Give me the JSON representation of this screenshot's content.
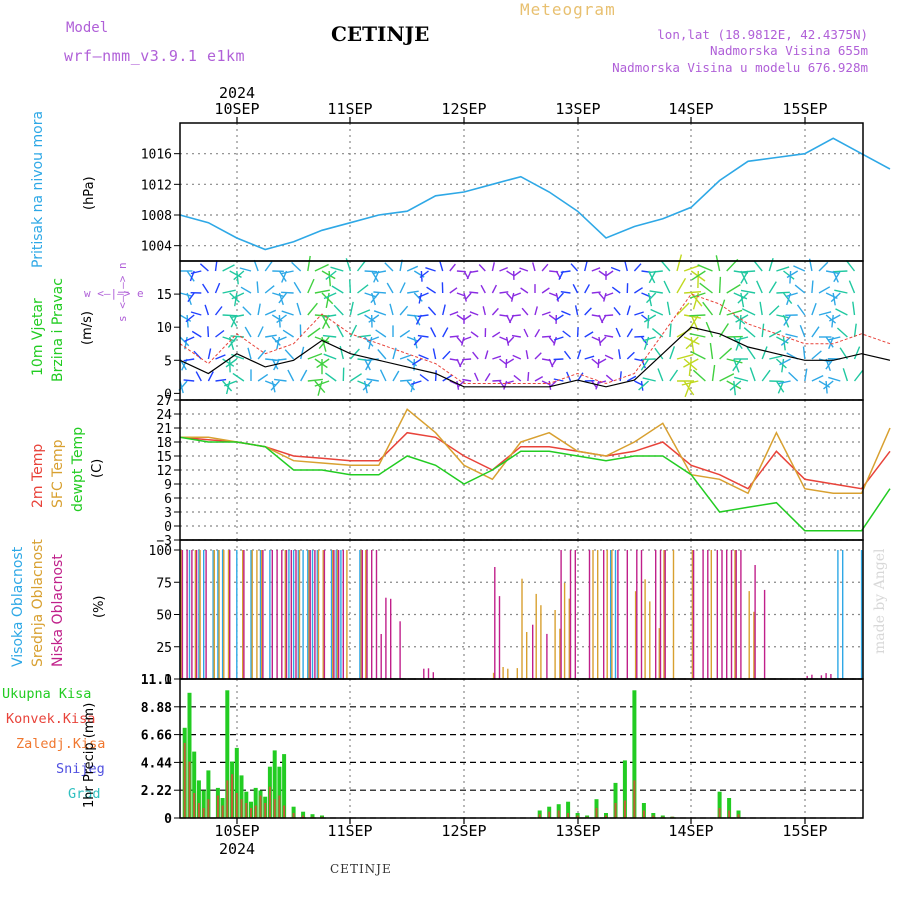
{
  "header": {
    "model_label": "Model",
    "model_name": "wrf—nmm_v3.9.1 e1km",
    "city": "CETINJE",
    "meteogram": "Meteogram",
    "lonlat": "lon,lat (18.9812E, 42.4375N)",
    "elevation": "Nadmorska Visina 655m",
    "model_elevation": "Nadmorska Visina u modelu 676.928m"
  },
  "footer": {
    "city": "CETINJE",
    "watermark": "made by Angel"
  },
  "colors": {
    "pressure": "#2ea8e6",
    "temp2m": "#e8433a",
    "sfc": "#d8a030",
    "dew": "#22cc22",
    "cloud_high": "#2ea8e6",
    "cloud_mid": "#d8a030",
    "cloud_low": "#c0208a",
    "precip": "#22cc22",
    "conv": "#e8433a"
  },
  "time_axis": {
    "year_label": "2024",
    "days": [
      "10SEP",
      "11SEP",
      "12SEP",
      "13SEP",
      "14SEP",
      "15SEP"
    ],
    "hours_total": 150
  },
  "panels": {
    "pressure": {
      "title": "Pritisak na nivou mora",
      "unit": "(hPa)",
      "ticks": [
        "1004",
        "1008",
        "1012",
        "1016"
      ]
    },
    "wind": {
      "title1": "10m Vjetar",
      "title2": "Brzina i Pravac",
      "unit": "(m/s)",
      "ticks": [
        "0",
        "5",
        "10",
        "15"
      ],
      "compass": "w <—|—> e",
      "compass_v": "s <—|—> n"
    },
    "temp": {
      "t1": "2m Temp",
      "t2": "SFC Temp",
      "t3": "dewpt Temp",
      "unit": "(C)",
      "ticks": [
        "−3",
        "0",
        "3",
        "6",
        "9",
        "12",
        "15",
        "18",
        "21",
        "24",
        "27"
      ]
    },
    "cloud": {
      "t1": "Visoka Oblacnost",
      "t2": "Srednja Oblacnost",
      "t3": "Niska Oblacnost",
      "unit": "(%)",
      "ticks": [
        "0",
        "25",
        "50",
        "75",
        "100"
      ]
    },
    "precip": {
      "l1": "Ukupna Kisa",
      "l2": "Konvek.Kisa",
      "l3": "Zaledj.Kisa",
      "l4": "Snijeg",
      "l5": "Grad",
      "unit": "1hr Precip (mm)",
      "ticks": [
        "0",
        "2.22",
        "4.44",
        "6.66",
        "8.88",
        "11.1"
      ]
    }
  },
  "chart_data": [
    {
      "type": "line",
      "title": "Pritisak na nivou mora",
      "ylabel": "(hPa)",
      "ylim": [
        1002,
        1020
      ],
      "x_hours": [
        0,
        6,
        12,
        18,
        24,
        30,
        36,
        42,
        48,
        54,
        60,
        66,
        72,
        78,
        84,
        90,
        96,
        102,
        108,
        114,
        120,
        126,
        132,
        138,
        144,
        150
      ],
      "series": [
        {
          "values": [
            1008,
            1007,
            1005,
            1003.5,
            1004.5,
            1006,
            1007,
            1008,
            1008.5,
            1010.5,
            1011,
            1012,
            1013,
            1011,
            1008.5,
            1005,
            1006.5,
            1007.5,
            1009,
            1012.5,
            1015,
            1015.5,
            1016,
            1018,
            1016,
            1014
          ]
        }
      ]
    },
    {
      "type": "line",
      "title": "10m Vjetar Brzina i Pravac",
      "ylabel": "(m/s)",
      "ylim": [
        -1,
        20
      ],
      "x_hours": [
        0,
        6,
        12,
        18,
        24,
        30,
        36,
        42,
        48,
        54,
        60,
        66,
        72,
        78,
        84,
        90,
        96,
        102,
        108,
        114,
        120,
        126,
        132,
        138,
        144,
        150
      ],
      "series": [
        {
          "values": [
            5,
            3,
            6,
            4,
            5,
            8,
            6,
            5,
            4,
            3,
            1,
            1,
            1,
            1,
            2,
            1,
            2,
            6,
            10,
            9,
            7,
            6,
            5,
            5,
            6,
            5
          ]
        }
      ]
    },
    {
      "type": "line",
      "title": "2m Temp / SFC Temp / dewpt Temp",
      "ylabel": "(C)",
      "ylim": [
        -3,
        27
      ],
      "x_hours": [
        0,
        6,
        12,
        18,
        24,
        30,
        36,
        42,
        48,
        54,
        60,
        66,
        72,
        78,
        84,
        90,
        96,
        102,
        108,
        114,
        120,
        126,
        132,
        138,
        144,
        150
      ],
      "series": [
        {
          "name": "2m Temp",
          "values": [
            19,
            18.5,
            18,
            17,
            15,
            14.5,
            14,
            14,
            20,
            19,
            15,
            12,
            17,
            17,
            16,
            15,
            16,
            18,
            13,
            11,
            8,
            16,
            10,
            9,
            8,
            16
          ]
        },
        {
          "name": "SFC Temp",
          "values": [
            19,
            19,
            18,
            17,
            14,
            13.5,
            13,
            13,
            25,
            20,
            13,
            10,
            18,
            20,
            16,
            15,
            18,
            22,
            11,
            10,
            7,
            20,
            8,
            7,
            7,
            21
          ]
        },
        {
          "name": "dewpt Temp",
          "values": [
            19,
            18,
            18,
            17,
            12,
            12,
            11,
            11,
            15,
            13,
            9,
            12,
            16,
            16,
            15,
            14,
            15,
            15,
            11,
            3,
            4,
            5,
            -1,
            -1,
            -1,
            8
          ]
        }
      ]
    },
    {
      "type": "bar",
      "title": "Oblacnost",
      "ylabel": "(%)",
      "ylim": [
        0,
        100
      ],
      "note": "cloud fraction per hour: ~100% first ~40h, scattered thereafter",
      "series": [
        {
          "name": "Visoka Oblacnost",
          "values": [
            100,
            100,
            100,
            100,
            100,
            100,
            100,
            0,
            0,
            0,
            0,
            0,
            0,
            0,
            0,
            100,
            0,
            0,
            0,
            0,
            0,
            0,
            0,
            100,
            100
          ]
        },
        {
          "name": "Srednja Oblacnost",
          "values": [
            100,
            100,
            100,
            100,
            100,
            100,
            100,
            0,
            0,
            0,
            0,
            10,
            90,
            80,
            100,
            100,
            90,
            100,
            100,
            100,
            95,
            0,
            0,
            0,
            25
          ]
        },
        {
          "name": "Niska Oblacnost",
          "values": [
            100,
            100,
            100,
            100,
            100,
            100,
            100,
            70,
            10,
            0,
            0,
            95,
            60,
            100,
            100,
            100,
            100,
            100,
            100,
            100,
            95,
            0,
            5,
            0,
            0
          ]
        }
      ]
    },
    {
      "type": "bar",
      "title": "1hr Precip",
      "ylabel": "1hr Precip (mm)",
      "ylim": [
        0,
        11.1
      ],
      "x_hours": [
        1,
        2,
        3,
        4,
        5,
        6,
        8,
        9,
        10,
        11,
        12,
        13,
        14,
        15,
        16,
        17,
        18,
        19,
        20,
        21,
        22,
        24,
        26,
        28,
        30,
        76,
        78,
        80,
        82,
        84,
        86,
        88,
        90,
        92,
        94,
        96,
        98,
        100,
        102,
        104,
        114,
        116,
        118
      ],
      "series": [
        {
          "name": "Ukupna Kisa",
          "values": [
            7.2,
            10,
            5.3,
            3.0,
            2.2,
            3.8,
            2.4,
            1.6,
            10.2,
            4.5,
            5.6,
            3.4,
            2.1,
            1.3,
            2.4,
            2.2,
            1.7,
            4.1,
            5.4,
            4.1,
            5.1,
            0.9,
            0.5,
            0.3,
            0.2,
            0.6,
            0.9,
            1.1,
            1.3,
            0.4,
            0.2,
            1.5,
            0.4,
            2.8,
            4.6,
            10.2,
            1.2,
            0.4,
            0.2,
            0.1,
            2.1,
            1.6,
            0.6
          ]
        },
        {
          "name": "Konvek.Kisa",
          "values": [
            6,
            4.5,
            2,
            1.2,
            0.8,
            1.5,
            1.8,
            1,
            3,
            3.5,
            2,
            1.5,
            1.2,
            0.8,
            1,
            1.8,
            1.2,
            2.5,
            1.5,
            1.8,
            1,
            0.4,
            0.2,
            0.1,
            0.1,
            0.3,
            0.5,
            0.6,
            0.4,
            0.2,
            0.1,
            0.8,
            0.2,
            1.2,
            1.4,
            3,
            0.6,
            0.2,
            0.1,
            0.1,
            0.8,
            0.6,
            0.3
          ]
        }
      ]
    }
  ]
}
